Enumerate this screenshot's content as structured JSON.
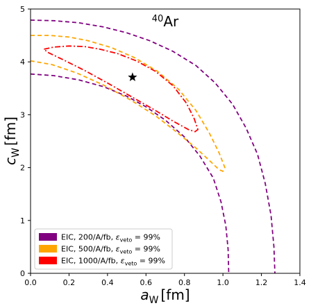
{
  "chart_data": {
    "type": "line",
    "title": {
      "base": "Ar",
      "superscript": "40"
    },
    "xlabel": {
      "var": "a",
      "sub": "W",
      "unit": "[fm]"
    },
    "ylabel": {
      "var": "c",
      "sub": "W",
      "unit": "[fm]"
    },
    "xlim": [
      0.0,
      1.4
    ],
    "ylim": [
      0,
      5
    ],
    "xticks": [
      0.0,
      0.2,
      0.4,
      0.6,
      0.8,
      1.0,
      1.2,
      1.4
    ],
    "xtick_labels": [
      "0.0",
      "0.2",
      "0.4",
      "0.6",
      "0.8",
      "1.0",
      "1.2",
      "1.4"
    ],
    "yticks": [
      0,
      1,
      2,
      3,
      4,
      5
    ],
    "ytick_labels": [
      "0",
      "1",
      "2",
      "3",
      "4",
      "5"
    ],
    "grid": false,
    "legend_position": "lower-left",
    "marker": {
      "symbol": "star",
      "x": 0.53,
      "y": 3.71
    },
    "series": [
      {
        "name_prefix": "EIC, 200/A/fb, ",
        "eps_label": "ε",
        "eps_sub": "veto",
        "eps_value": " = 99%",
        "color": "#800080",
        "dash": "dashed",
        "contours": [
          {
            "closed": false,
            "points": [
              [
                0.0,
                4.79
              ],
              [
                0.12,
                4.78
              ],
              [
                0.25,
                4.74
              ],
              [
                0.38,
                4.66
              ],
              [
                0.5,
                4.55
              ],
              [
                0.62,
                4.4
              ],
              [
                0.74,
                4.2
              ],
              [
                0.86,
                3.93
              ],
              [
                0.96,
                3.6
              ],
              [
                1.05,
                3.2
              ],
              [
                1.12,
                2.75
              ],
              [
                1.18,
                2.25
              ],
              [
                1.22,
                1.7
              ],
              [
                1.25,
                1.1
              ],
              [
                1.265,
                0.5
              ],
              [
                1.27,
                0.0
              ]
            ]
          },
          {
            "closed": false,
            "points": [
              [
                0.0,
                3.77
              ],
              [
                0.12,
                3.74
              ],
              [
                0.25,
                3.66
              ],
              [
                0.38,
                3.53
              ],
              [
                0.5,
                3.35
              ],
              [
                0.6,
                3.15
              ],
              [
                0.7,
                2.9
              ],
              [
                0.8,
                2.58
              ],
              [
                0.88,
                2.22
              ],
              [
                0.95,
                1.8
              ],
              [
                0.99,
                1.35
              ],
              [
                1.015,
                0.9
              ],
              [
                1.027,
                0.45
              ],
              [
                1.03,
                0.0
              ]
            ]
          }
        ]
      },
      {
        "name_prefix": "EIC, 500/A/fb, ",
        "eps_label": "ε",
        "eps_sub": "veto",
        "eps_value": " = 99%",
        "color": "#FFA500",
        "dash": "dashed",
        "contours": [
          {
            "closed": false,
            "points": [
              [
                0.0,
                4.5
              ],
              [
                0.1,
                4.5
              ],
              [
                0.2,
                4.47
              ],
              [
                0.3,
                4.4
              ],
              [
                0.42,
                4.27
              ],
              [
                0.54,
                4.08
              ],
              [
                0.66,
                3.82
              ],
              [
                0.77,
                3.48
              ],
              [
                0.86,
                3.08
              ],
              [
                0.93,
                2.65
              ],
              [
                0.98,
                2.28
              ],
              [
                1.01,
                2.0
              ],
              [
                1.0,
                1.93
              ],
              [
                0.98,
                1.96
              ],
              [
                0.94,
                2.1
              ],
              [
                0.86,
                2.37
              ],
              [
                0.76,
                2.67
              ],
              [
                0.65,
                2.98
              ],
              [
                0.52,
                3.28
              ],
              [
                0.38,
                3.56
              ],
              [
                0.24,
                3.79
              ],
              [
                0.11,
                3.95
              ],
              [
                0.0,
                4.02
              ]
            ]
          }
        ]
      },
      {
        "name_prefix": "EIC, 1000/A/fb, ",
        "eps_label": "ε",
        "eps_sub": "veto",
        "eps_value": " = 99%",
        "color": "#FF0000",
        "dash": "dashdot",
        "contours": [
          {
            "closed": true,
            "points": [
              [
                0.07,
                4.24
              ],
              [
                0.12,
                4.28
              ],
              [
                0.2,
                4.3
              ],
              [
                0.28,
                4.29
              ],
              [
                0.36,
                4.24
              ],
              [
                0.45,
                4.16
              ],
              [
                0.55,
                4.02
              ],
              [
                0.65,
                3.82
              ],
              [
                0.74,
                3.55
              ],
              [
                0.81,
                3.22
              ],
              [
                0.85,
                2.93
              ],
              [
                0.87,
                2.72
              ],
              [
                0.855,
                2.68
              ],
              [
                0.82,
                2.72
              ],
              [
                0.74,
                2.88
              ],
              [
                0.64,
                3.1
              ],
              [
                0.52,
                3.35
              ],
              [
                0.4,
                3.6
              ],
              [
                0.28,
                3.84
              ],
              [
                0.17,
                4.04
              ],
              [
                0.09,
                4.18
              ]
            ]
          }
        ]
      }
    ]
  }
}
